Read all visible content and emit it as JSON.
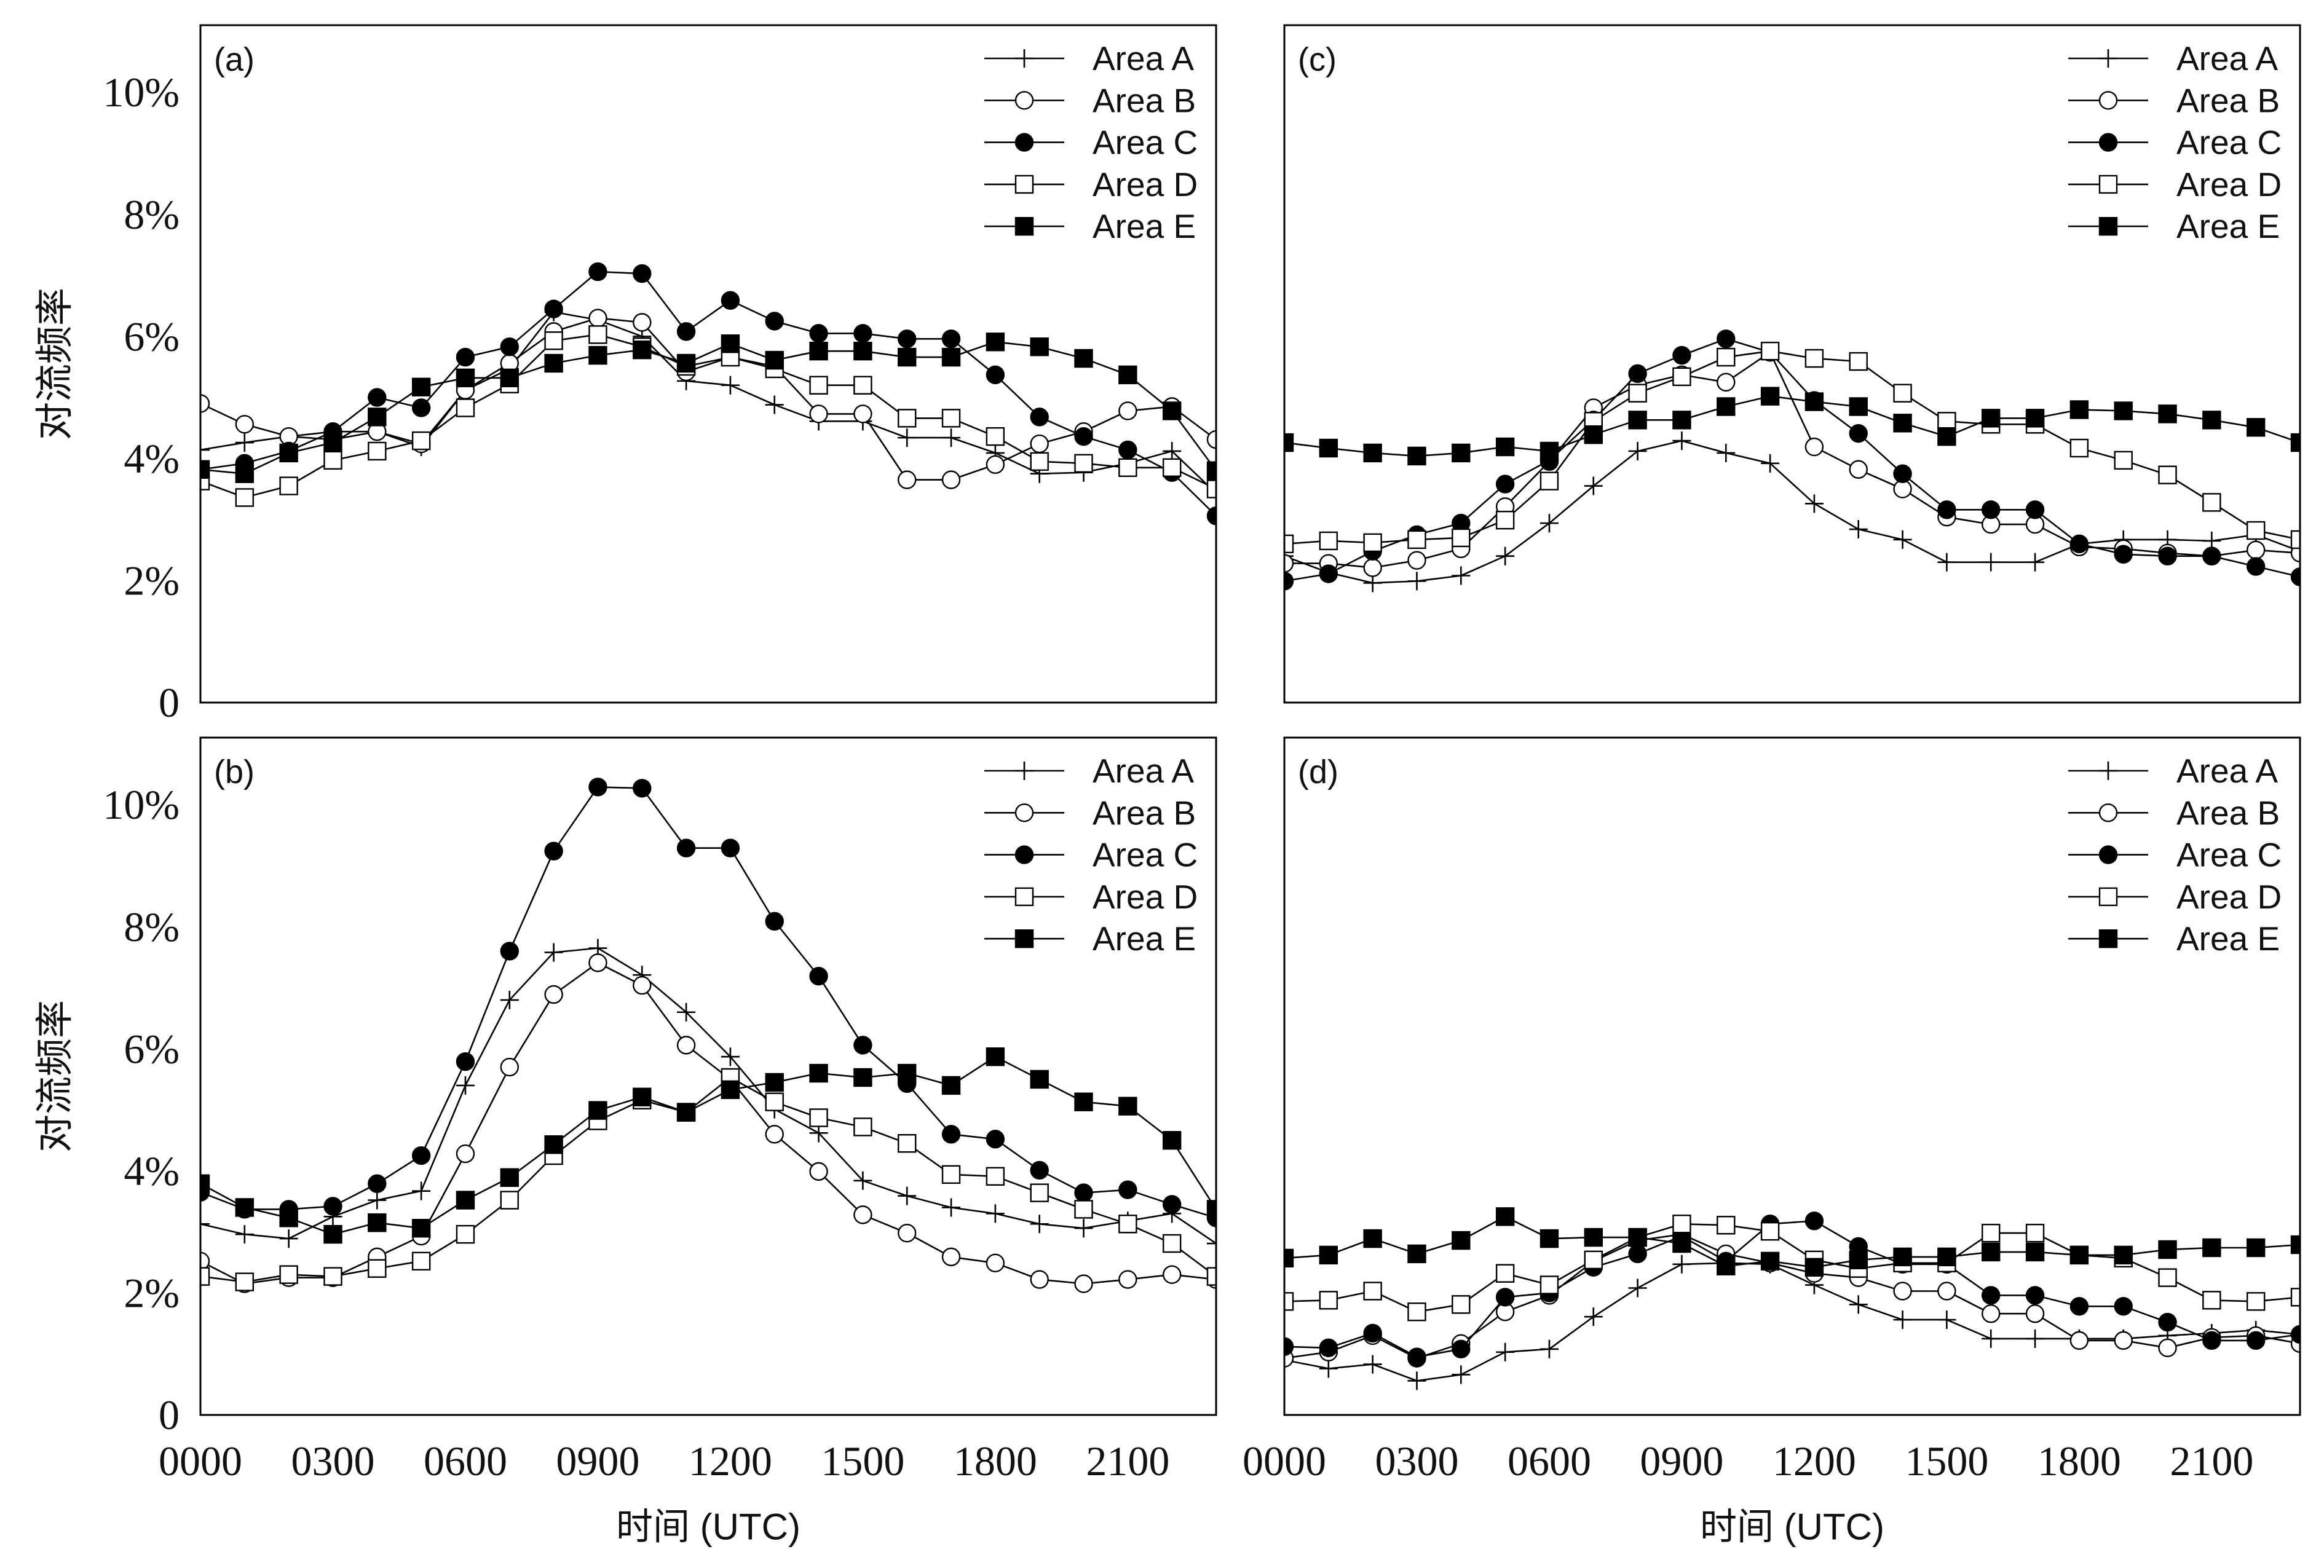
{
  "chart_data": [
    {
      "panel_label": "(a)",
      "type": "line",
      "x": [
        "0000",
        "0100",
        "0200",
        "0300",
        "0400",
        "0500",
        "0600",
        "0700",
        "0800",
        "0900",
        "1000",
        "1100",
        "1200",
        "1300",
        "1400",
        "1500",
        "1600",
        "1700",
        "1800",
        "1900",
        "2000",
        "2100",
        "2200",
        "2300"
      ],
      "xlim": [
        "0000",
        "2300"
      ],
      "ylim": [
        0,
        11.1
      ],
      "x_tick_labels": [],
      "y_tick_labels": [
        "0",
        "2%",
        "4%",
        "6%",
        "8%",
        "10%"
      ],
      "xlabel": "",
      "ylabel": "对流频率",
      "grid": false,
      "legend_position": "top-right",
      "series": [
        {
          "name": "Area A",
          "marker": "plus",
          "color": "#000000",
          "values": [
            4.14,
            4.26,
            4.36,
            4.44,
            4.44,
            4.19,
            5.12,
            5.47,
            6.4,
            6.27,
            6.0,
            5.27,
            5.2,
            4.88,
            4.61,
            4.61,
            4.34,
            4.34,
            4.09,
            3.75,
            3.77,
            3.92,
            4.12,
            3.43
          ]
        },
        {
          "name": "Area B",
          "marker": "open-circle",
          "color": "#000000",
          "values": [
            4.9,
            4.56,
            4.36,
            4.31,
            4.44,
            4.24,
            5.12,
            5.56,
            6.08,
            6.3,
            6.23,
            5.42,
            5.66,
            5.51,
            4.73,
            4.73,
            3.65,
            3.65,
            3.9,
            4.24,
            4.44,
            4.78,
            4.85,
            4.31
          ]
        },
        {
          "name": "Area C",
          "marker": "filled-circle",
          "color": "#000000",
          "values": [
            3.82,
            3.92,
            4.12,
            4.44,
            5.0,
            4.83,
            5.66,
            5.83,
            6.45,
            7.06,
            7.03,
            6.08,
            6.59,
            6.25,
            6.05,
            6.05,
            5.96,
            5.96,
            5.37,
            4.68,
            4.36,
            4.14,
            3.77,
            3.06
          ]
        },
        {
          "name": "Area D",
          "marker": "open-square",
          "color": "#000000",
          "values": [
            3.63,
            3.36,
            3.55,
            3.97,
            4.12,
            4.29,
            4.83,
            5.22,
            5.93,
            6.03,
            5.83,
            5.51,
            5.66,
            5.47,
            5.2,
            5.2,
            4.66,
            4.66,
            4.36,
            3.95,
            3.92,
            3.85,
            3.85,
            3.5
          ]
        },
        {
          "name": "Area E",
          "marker": "filled-square",
          "color": "#000000",
          "values": [
            3.82,
            3.75,
            4.09,
            4.26,
            4.68,
            5.17,
            5.32,
            5.32,
            5.56,
            5.69,
            5.78,
            5.56,
            5.88,
            5.61,
            5.76,
            5.76,
            5.66,
            5.66,
            5.91,
            5.83,
            5.64,
            5.37,
            4.78,
            3.8
          ]
        }
      ]
    },
    {
      "panel_label": "(b)",
      "type": "line",
      "x": [
        "0000",
        "0100",
        "0200",
        "0300",
        "0400",
        "0500",
        "0600",
        "0700",
        "0800",
        "0900",
        "1000",
        "1100",
        "1200",
        "1300",
        "1400",
        "1500",
        "1600",
        "1700",
        "1800",
        "1900",
        "2000",
        "2100",
        "2200",
        "2300"
      ],
      "xlim": [
        "0000",
        "2300"
      ],
      "ylim": [
        0,
        11.1
      ],
      "x_tick_labels": [
        "0000",
        "0300",
        "0600",
        "0900",
        "1200",
        "1500",
        "1800",
        "2100"
      ],
      "y_tick_labels": [
        "0",
        "2%",
        "4%",
        "6%",
        "8%",
        "10%"
      ],
      "xlabel": "时间 (UTC)",
      "ylabel": "对流频率",
      "grid": false,
      "legend_position": "top-right",
      "series": [
        {
          "name": "Area A",
          "marker": "plus",
          "color": "#000000",
          "values": [
            3.13,
            2.96,
            2.89,
            3.25,
            3.52,
            3.67,
            5.4,
            6.8,
            7.58,
            7.65,
            7.21,
            6.6,
            5.87,
            5.01,
            4.62,
            3.84,
            3.59,
            3.4,
            3.3,
            3.13,
            3.06,
            3.18,
            3.3,
            2.81
          ]
        },
        {
          "name": "Area B",
          "marker": "open-circle",
          "color": "#000000",
          "values": [
            2.52,
            2.15,
            2.25,
            2.25,
            2.59,
            2.93,
            4.28,
            5.7,
            6.89,
            7.41,
            7.04,
            6.06,
            5.5,
            4.6,
            3.99,
            3.28,
            2.98,
            2.59,
            2.49,
            2.22,
            2.15,
            2.22,
            2.3,
            2.22
          ]
        },
        {
          "name": "Area C",
          "marker": "filled-circle",
          "color": "#000000",
          "values": [
            3.65,
            3.37,
            3.37,
            3.42,
            3.79,
            4.25,
            5.79,
            7.6,
            9.24,
            10.29,
            10.27,
            9.29,
            9.29,
            8.09,
            7.19,
            6.06,
            5.43,
            4.6,
            4.52,
            4.01,
            3.64,
            3.69,
            3.45,
            3.23
          ]
        },
        {
          "name": "Area D",
          "marker": "open-square",
          "color": "#000000",
          "values": [
            2.27,
            2.18,
            2.3,
            2.27,
            2.4,
            2.52,
            2.96,
            3.52,
            4.25,
            4.82,
            5.16,
            4.96,
            5.53,
            5.13,
            4.87,
            4.72,
            4.45,
            3.94,
            3.91,
            3.64,
            3.37,
            3.13,
            2.81,
            2.27
          ]
        },
        {
          "name": "Area E",
          "marker": "filled-square",
          "color": "#000000",
          "values": [
            3.79,
            3.4,
            3.23,
            2.96,
            3.15,
            3.06,
            3.52,
            3.89,
            4.43,
            4.99,
            5.21,
            4.96,
            5.33,
            5.45,
            5.6,
            5.53,
            5.6,
            5.4,
            5.87,
            5.5,
            5.13,
            5.06,
            4.5,
            3.37
          ]
        }
      ]
    },
    {
      "panel_label": "(c)",
      "type": "line",
      "x": [
        "0000",
        "0100",
        "0200",
        "0300",
        "0400",
        "0500",
        "0600",
        "0700",
        "0800",
        "0900",
        "1000",
        "1100",
        "1200",
        "1300",
        "1400",
        "1500",
        "1600",
        "1700",
        "1800",
        "1900",
        "2000",
        "2100",
        "2200",
        "2300"
      ],
      "xlim": [
        "0000",
        "2300"
      ],
      "ylim": [
        0,
        11.1
      ],
      "x_tick_labels": [],
      "y_tick_labels": [],
      "xlabel": "",
      "ylabel": "",
      "grid": false,
      "legend_position": "top-right",
      "series": [
        {
          "name": "Area A",
          "marker": "plus",
          "color": "#000000",
          "values": [
            2.4,
            2.13,
            1.96,
            1.99,
            2.08,
            2.4,
            2.94,
            3.55,
            4.12,
            4.29,
            4.09,
            3.92,
            3.26,
            2.84,
            2.67,
            2.3,
            2.3,
            2.3,
            2.6,
            2.67,
            2.67,
            2.65,
            2.75,
            2.48
          ]
        },
        {
          "name": "Area B",
          "marker": "open-circle",
          "color": "#000000",
          "values": [
            2.28,
            2.28,
            2.21,
            2.33,
            2.52,
            3.21,
            3.95,
            4.83,
            5.2,
            5.37,
            5.25,
            5.74,
            4.19,
            3.82,
            3.5,
            3.04,
            2.92,
            2.92,
            2.55,
            2.52,
            2.45,
            2.4,
            2.5,
            2.45
          ]
        },
        {
          "name": "Area C",
          "marker": "filled-circle",
          "color": "#000000",
          "values": [
            1.99,
            2.11,
            2.48,
            2.75,
            2.94,
            3.58,
            3.97,
            4.63,
            5.39,
            5.69,
            5.96,
            5.74,
            4.95,
            4.41,
            3.75,
            3.16,
            3.16,
            3.16,
            2.6,
            2.43,
            2.4,
            2.4,
            2.23,
            2.06
          ]
        },
        {
          "name": "Area D",
          "marker": "open-square",
          "color": "#000000",
          "values": [
            2.6,
            2.65,
            2.62,
            2.67,
            2.7,
            2.99,
            3.63,
            4.61,
            5.07,
            5.34,
            5.66,
            5.76,
            5.64,
            5.59,
            5.07,
            4.61,
            4.56,
            4.56,
            4.17,
            3.97,
            3.73,
            3.28,
            2.82,
            2.67
          ]
        },
        {
          "name": "Area E",
          "marker": "filled-square",
          "color": "#000000",
          "values": [
            4.26,
            4.17,
            4.09,
            4.04,
            4.09,
            4.19,
            4.12,
            4.39,
            4.63,
            4.63,
            4.85,
            5.02,
            4.93,
            4.85,
            4.58,
            4.36,
            4.66,
            4.66,
            4.8,
            4.78,
            4.73,
            4.63,
            4.51,
            4.26
          ]
        }
      ]
    },
    {
      "panel_label": "(d)",
      "type": "line",
      "x": [
        "0000",
        "0100",
        "0200",
        "0300",
        "0400",
        "0500",
        "0600",
        "0700",
        "0800",
        "0900",
        "1000",
        "1100",
        "1200",
        "1300",
        "1400",
        "1500",
        "1600",
        "1700",
        "1800",
        "1900",
        "2000",
        "2100",
        "2200",
        "2300"
      ],
      "xlim": [
        "0000",
        "2300"
      ],
      "ylim": [
        0,
        11.1
      ],
      "x_tick_labels": [
        "0000",
        "0300",
        "0600",
        "0900",
        "1200",
        "1500",
        "1800",
        "2100"
      ],
      "y_tick_labels": [],
      "xlabel": "时间 (UTC)",
      "ylabel": "",
      "grid": false,
      "legend_position": "top-right",
      "series": [
        {
          "name": "Area A",
          "marker": "plus",
          "color": "#000000",
          "values": [
            0.9,
            0.76,
            0.83,
            0.56,
            0.66,
            1.03,
            1.08,
            1.61,
            2.08,
            2.47,
            2.49,
            2.47,
            2.13,
            1.81,
            1.56,
            1.56,
            1.25,
            1.25,
            1.25,
            1.25,
            1.3,
            1.34,
            1.39,
            1.32
          ]
        },
        {
          "name": "Area B",
          "marker": "open-circle",
          "color": "#000000",
          "values": [
            0.93,
            1.03,
            1.3,
            0.93,
            1.17,
            1.69,
            1.96,
            2.52,
            2.86,
            2.96,
            2.64,
            2.49,
            2.32,
            2.25,
            2.03,
            2.03,
            1.66,
            1.66,
            1.22,
            1.22,
            1.1,
            1.27,
            1.3,
            1.17
          ]
        },
        {
          "name": "Area C",
          "marker": "filled-circle",
          "color": "#000000",
          "values": [
            1.12,
            1.1,
            1.34,
            0.95,
            1.08,
            1.93,
            2.0,
            2.42,
            2.64,
            2.93,
            2.52,
            3.13,
            3.18,
            2.76,
            2.47,
            2.47,
            1.96,
            1.96,
            1.78,
            1.78,
            1.52,
            1.22,
            1.22,
            1.32
          ]
        },
        {
          "name": "Area D",
          "marker": "open-square",
          "color": "#000000",
          "values": [
            1.86,
            1.88,
            2.03,
            1.69,
            1.81,
            2.32,
            2.13,
            2.54,
            2.91,
            3.13,
            3.11,
            3.01,
            2.54,
            2.4,
            2.49,
            2.49,
            2.98,
            2.98,
            2.62,
            2.57,
            2.25,
            1.88,
            1.86,
            1.93
          ]
        },
        {
          "name": "Area E",
          "marker": "filled-square",
          "color": "#000000",
          "values": [
            2.57,
            2.62,
            2.89,
            2.64,
            2.86,
            3.25,
            2.89,
            2.91,
            2.91,
            2.81,
            2.44,
            2.52,
            2.42,
            2.54,
            2.59,
            2.59,
            2.67,
            2.67,
            2.62,
            2.62,
            2.71,
            2.74,
            2.74,
            2.79
          ]
        }
      ]
    }
  ]
}
